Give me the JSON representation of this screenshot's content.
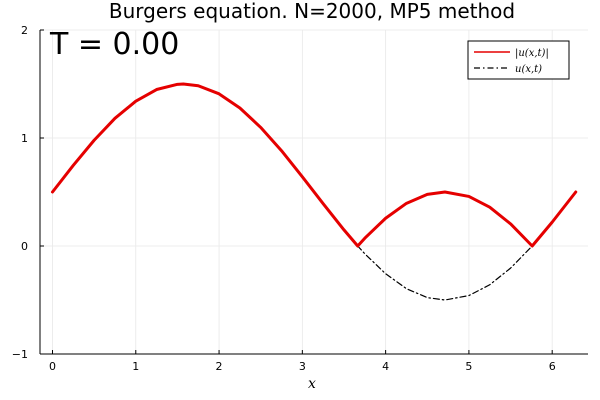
{
  "chart_data": {
    "type": "line",
    "title": "Burgers equation. N=2000, MP5 method",
    "annotation": "T = 0.00",
    "xlabel": "x",
    "ylabel": "",
    "xlim": [
      -0.15,
      6.43
    ],
    "ylim": [
      -1,
      2
    ],
    "x_ticks": [
      0,
      1,
      2,
      3,
      4,
      5,
      6
    ],
    "y_ticks": [
      -1,
      0,
      1,
      2
    ],
    "x_tick_labels": [
      "0",
      "1",
      "2",
      "3",
      "4",
      "5",
      "6"
    ],
    "y_tick_labels": [
      "−1",
      "0",
      "1",
      "2"
    ],
    "grid": true,
    "legend_position": "top-right",
    "series": [
      {
        "name": "|u(x,t)|",
        "color": "#e50000",
        "style": "solid",
        "x": [
          0,
          0.25,
          0.5,
          0.75,
          1.0,
          1.25,
          1.5,
          1.571,
          1.75,
          2.0,
          2.25,
          2.5,
          2.75,
          3.0,
          3.25,
          3.5,
          3.665,
          3.75,
          4.0,
          4.25,
          4.5,
          4.712,
          5.0,
          5.25,
          5.5,
          5.76,
          6.0,
          6.283
        ],
        "y": [
          0.5,
          0.747,
          0.979,
          1.182,
          1.341,
          1.449,
          1.497,
          1.5,
          1.484,
          1.409,
          1.278,
          1.098,
          0.882,
          0.641,
          0.392,
          0.149,
          0.0,
          0.072,
          0.257,
          0.395,
          0.478,
          0.5,
          0.459,
          0.359,
          0.205,
          0.0,
          0.221,
          0.5
        ]
      },
      {
        "name": "u(x,t)",
        "color": "#000000",
        "style": "dashdot",
        "x": [
          0,
          0.25,
          0.5,
          0.75,
          1.0,
          1.25,
          1.5,
          1.571,
          1.75,
          2.0,
          2.25,
          2.5,
          2.75,
          3.0,
          3.25,
          3.5,
          3.665,
          3.75,
          4.0,
          4.25,
          4.5,
          4.712,
          5.0,
          5.25,
          5.5,
          5.76,
          6.0,
          6.283
        ],
        "y": [
          0.5,
          0.747,
          0.979,
          1.182,
          1.341,
          1.449,
          1.497,
          1.5,
          1.484,
          1.409,
          1.278,
          1.098,
          0.882,
          0.641,
          0.392,
          0.149,
          0.0,
          -0.072,
          -0.257,
          -0.395,
          -0.478,
          -0.5,
          -0.459,
          -0.359,
          -0.205,
          0.0,
          0.221,
          0.5
        ]
      }
    ]
  }
}
